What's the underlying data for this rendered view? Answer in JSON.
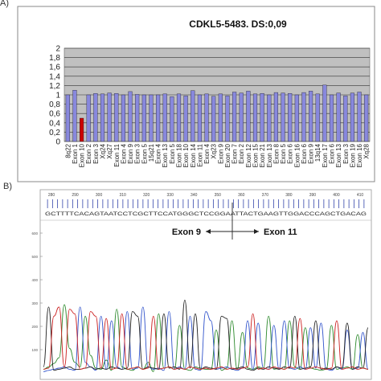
{
  "panel_a_label": "A)",
  "panel_b_label": "B)",
  "colors": {
    "bar": "#8888dd",
    "bar_highlight": "#cc0000",
    "plot_bg": "#c0c0c0",
    "trace_a": "#2e8b2e",
    "trace_c": "#3355cc",
    "trace_g": "#222222",
    "trace_t": "#cc2222"
  },
  "chart_data": [
    {
      "type": "bar",
      "title": "CDKL5-5483. DS:0,09",
      "ylim": [
        0,
        2
      ],
      "yticks": [
        "0",
        "0,2",
        "0,4",
        "0,6",
        "0,8",
        "1",
        "1,2",
        "1,4",
        "1,6",
        "1,8",
        "2"
      ],
      "grid": true,
      "categories": [
        "8q22",
        "Exon 1",
        "Exon 10",
        "Exon 2",
        "Exon 3",
        "Xq24",
        "Xq27",
        "Exon 11",
        "Exon 4",
        "Exon 9",
        "Exon 3",
        "Exon 5",
        "15q21",
        "Exon 4",
        "Exon 13",
        "Exon 5",
        "Exon 18",
        "Exon 10",
        "Exon 14",
        "Exon 11",
        "Exon 4",
        "Xq23",
        "Exon 9",
        "Exon 20",
        "Exon 7",
        "Exon 2",
        "Exon 12",
        "Exon 15",
        "Exon 21",
        "Exon 13",
        "Exon 8",
        "Exon 5",
        "Exon 6",
        "Exon 16",
        "Exon 6",
        "Exon 9",
        "13q14",
        "Exon 17",
        "Exon 6",
        "Exon 13",
        "Exon 3",
        "Exon 19",
        "Exon 16",
        "Xq28"
      ],
      "values": [
        1.0,
        1.1,
        0.5,
        1.0,
        1.03,
        1.02,
        1.04,
        1.03,
        1.0,
        1.07,
        1.01,
        1.0,
        1.0,
        1.0,
        1.02,
        0.96,
        1.02,
        0.98,
        1.09,
        1.0,
        1.02,
        0.97,
        1.02,
        0.98,
        1.06,
        1.04,
        1.08,
        1.02,
        1.03,
        1.0,
        1.05,
        1.04,
        1.03,
        1.0,
        1.05,
        1.08,
        1.02,
        1.21,
        1.0,
        1.04,
        0.98,
        1.04,
        1.06,
        1.0
      ],
      "highlight_index": 2
    },
    {
      "type": "line",
      "title": "",
      "top_ruler_ticks": [
        "280",
        "290",
        "300",
        "310",
        "320",
        "330",
        "340",
        "350",
        "360",
        "370",
        "380",
        "390",
        "400",
        "410"
      ],
      "y_ruler_ticks": [
        "600",
        "500",
        "400",
        "300",
        "200",
        "100"
      ],
      "sequence": "GCTTTTCACAGTAATCCTCGCTTCCATGGGCTCCGGAATTACTGAAGTTGGACCCAGCTGACAG",
      "annotation_left": "Exon 9",
      "annotation_right": "Exon 11",
      "x": [
        0,
        2,
        4,
        6,
        8,
        10,
        12,
        14,
        16,
        18,
        20,
        22,
        24,
        26,
        28,
        30,
        32,
        34,
        36,
        38,
        40,
        42,
        44,
        46,
        48,
        50,
        52,
        54,
        56,
        58,
        60,
        62,
        64,
        66,
        68,
        70,
        72,
        74,
        76,
        78,
        80,
        82,
        84,
        86,
        88,
        90,
        92,
        94,
        96,
        98,
        100,
        102,
        104,
        106,
        108,
        110,
        112,
        114,
        116,
        118,
        120,
        122,
        124
      ],
      "series": [
        {
          "name": "A",
          "values": [
            30,
            40,
            55,
            80,
            310,
            120,
            60,
            40,
            260,
            90,
            35,
            30,
            70,
            25,
            290,
            40,
            30,
            25,
            40,
            30,
            60,
            20,
            270,
            35,
            40,
            30,
            220,
            30,
            25,
            40,
            35,
            30,
            30,
            200,
            25,
            35,
            240,
            30,
            190,
            35,
            30,
            40,
            35,
            260,
            30,
            35,
            30,
            240,
            40,
            30,
            210,
            35,
            30,
            25,
            30,
            220,
            30,
            35,
            40,
            30,
            180,
            35,
            30
          ]
        },
        {
          "name": "C",
          "values": [
            20,
            25,
            30,
            35,
            40,
            30,
            25,
            300,
            60,
            40,
            25,
            260,
            30,
            240,
            40,
            30,
            280,
            30,
            35,
            300,
            40,
            30,
            35,
            25,
            280,
            30,
            40,
            30,
            260,
            30,
            25,
            280,
            240,
            30,
            35,
            40,
            30,
            25,
            35,
            240,
            30,
            230,
            35,
            30,
            220,
            30,
            240,
            35,
            30,
            40,
            30,
            210,
            35,
            230,
            30,
            25,
            40,
            30,
            200,
            30,
            35,
            190,
            30
          ]
        },
        {
          "name": "G",
          "values": [
            40,
            300,
            25,
            30,
            35,
            40,
            30,
            30,
            35,
            40,
            30,
            35,
            30,
            40,
            35,
            30,
            35,
            280,
            260,
            30,
            40,
            35,
            30,
            270,
            35,
            40,
            30,
            330,
            35,
            270,
            30,
            40,
            35,
            30,
            260,
            250,
            30,
            35,
            40,
            30,
            25,
            35,
            30,
            40,
            35,
            30,
            40,
            35,
            260,
            30,
            35,
            40,
            240,
            30,
            35,
            30,
            40,
            35,
            230,
            30,
            40,
            35,
            210
          ]
        },
        {
          "name": "T",
          "values": [
            30,
            35,
            260,
            300,
            40,
            290,
            270,
            30,
            35,
            280,
            260,
            35,
            250,
            30,
            35,
            270,
            30,
            35,
            40,
            30,
            35,
            260,
            30,
            35,
            40,
            30,
            35,
            30,
            40,
            35,
            30,
            35,
            30,
            35,
            40,
            30,
            35,
            30,
            35,
            40,
            270,
            30,
            35,
            30,
            40,
            35,
            30,
            40,
            35,
            250,
            30,
            35,
            40,
            35,
            30,
            35,
            240,
            30,
            35,
            40,
            30,
            35,
            30
          ]
        }
      ]
    }
  ]
}
